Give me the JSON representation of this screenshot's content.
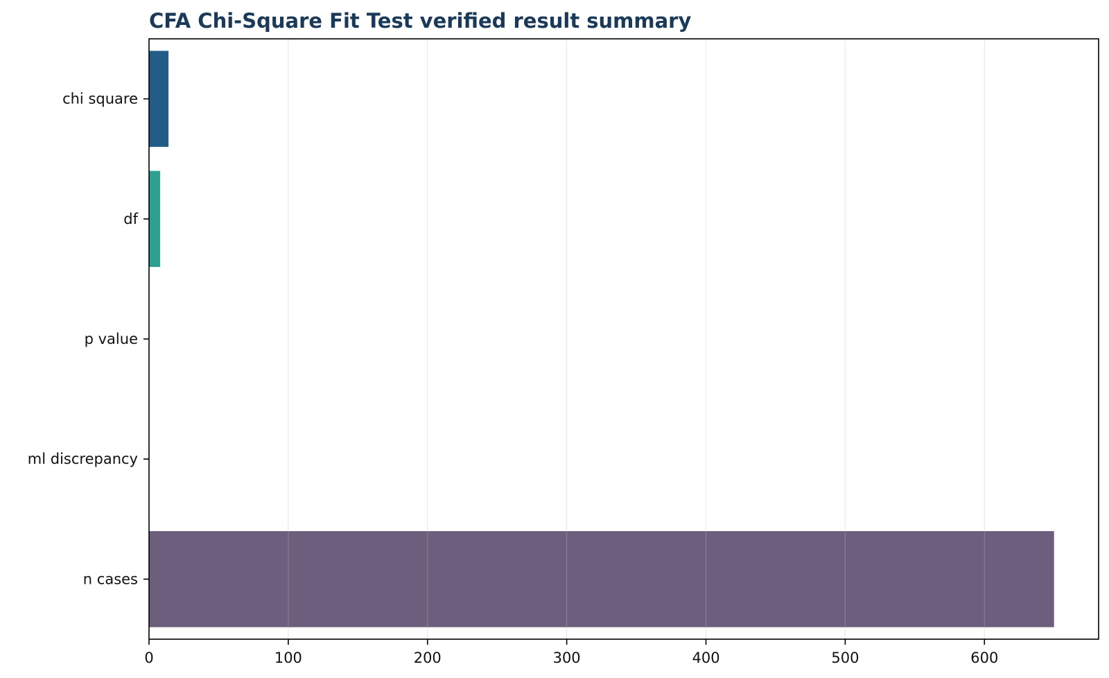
{
  "chart_data": {
    "type": "bar",
    "orientation": "horizontal",
    "title": "CFA Chi-Square Fit Test verified result summary",
    "xlabel": "",
    "ylabel": "",
    "categories": [
      "chi square",
      "df",
      "p value",
      "ml discrepancy",
      "n cases"
    ],
    "values": [
      14.0,
      8.0,
      0.08,
      0.02,
      650
    ],
    "colors": [
      "#1f5a85",
      "#2a9d8f",
      "#e9c46a",
      "#f4a261",
      "#6b5b7b"
    ],
    "xlim": [
      0,
      682
    ],
    "xticks": [
      0,
      100,
      200,
      300,
      400,
      500,
      600
    ],
    "xtick_labels": [
      "0",
      "100",
      "200",
      "300",
      "400",
      "500",
      "600"
    ],
    "grid": "vertical",
    "legend": "none"
  }
}
